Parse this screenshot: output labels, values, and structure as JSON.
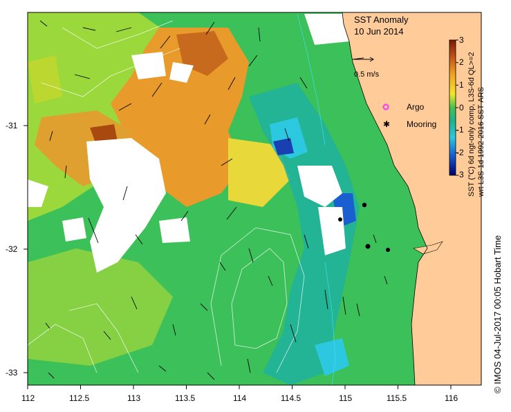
{
  "title": "SST Anomaly",
  "date": "10 Jun 2014",
  "vector_scale_label": "0.5 m/s",
  "legend": {
    "argo_label": "Argo",
    "mooring_label": "Mooring",
    "argo_color": "#ff33ff",
    "mooring_color": "#000000"
  },
  "colorbar": {
    "label": "SST (°C) 6d ngt-only comp, L3S-6d QL>=2",
    "label2": "wrt L3S-1d 1992-2016 SST-ARS",
    "ticks": [
      "3",
      "2",
      "1",
      "0",
      "-1",
      "-2",
      "-3"
    ],
    "colors": [
      "#7a1a00",
      "#c86a1e",
      "#f0a020",
      "#f5e020",
      "#7cd33a",
      "#22b04a",
      "#2bd5cf",
      "#1f8fe0",
      "#1a3fb0",
      "#00006a"
    ]
  },
  "x_ticks": [
    "112",
    "112.5",
    "113",
    "113.5",
    "114",
    "114.5",
    "115",
    "115.5",
    "116"
  ],
  "y_ticks": [
    "-31",
    "-32",
    "-33"
  ],
  "credit": "© IMOS 04-Jul-2017 00:05 Hobart Time",
  "colors": {
    "land": "#ffcc99",
    "ocean_green": "#3cc05a",
    "ocean_yellowgreen": "#9ad83c",
    "warm_orange": "#e89a2a",
    "cloud_white": "#ffffff"
  }
}
